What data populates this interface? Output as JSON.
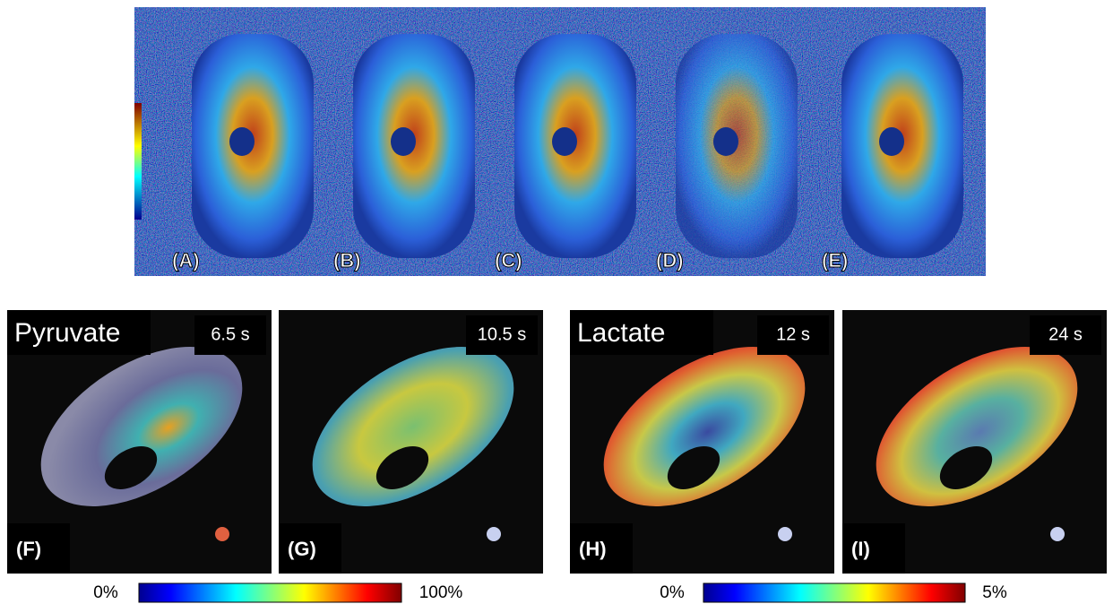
{
  "top_panel": {
    "labels": [
      "(A)",
      "(B)",
      "(C)",
      "(D)",
      "(E)"
    ]
  },
  "bottom_panels": [
    {
      "label": "(F)",
      "title": "Pyruvate",
      "time": "6.5 s"
    },
    {
      "label": "(G)",
      "time": "10.5 s"
    },
    {
      "label": "(H)",
      "title": "Lactate",
      "time": "12 s"
    },
    {
      "label": "(I)",
      "time": "24 s"
    }
  ],
  "colorbars": [
    {
      "min": "0%",
      "max": "100%"
    },
    {
      "min": "0%",
      "max": "5%"
    }
  ]
}
